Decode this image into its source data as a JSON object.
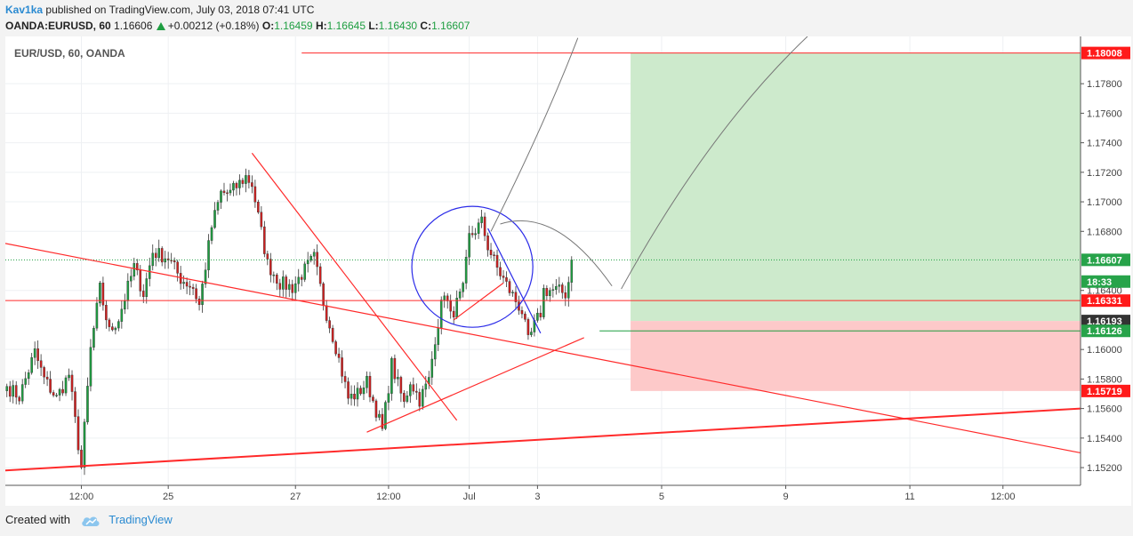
{
  "header": {
    "author": "Kav1ka",
    "published": "published on TradingView.com, July 03, 2018 07:41 UTC",
    "symbol": "OANDA:EURUSD, 60",
    "last": "1.16606",
    "change": "+0.00212 (+0.18%)",
    "o_label": "O:",
    "o_value": "1.16459",
    "h_label": "H:",
    "h_value": "1.16645",
    "l_label": "L:",
    "l_value": "1.16430",
    "c_label": "C:",
    "c_value": "1.16607"
  },
  "footer": {
    "created_with": "Created with",
    "brand": "TradingView"
  },
  "colors": {
    "bull": "#1e9e41",
    "bear": "#d02020",
    "trend": "#ff2a2a",
    "circle": "#2a2ae8",
    "target_zone": "#cdeacc",
    "stop_zone": "#fdc9c9",
    "projection": "#777777",
    "brand": "#2a8ad1"
  },
  "chart_data": {
    "type": "candlestick",
    "title": "EUR/USD, 60, OANDA",
    "ylim": [
      1.1508,
      1.1812
    ],
    "y_ticks": [
      "1.17800",
      "1.17600",
      "1.17400",
      "1.17200",
      "1.17000",
      "1.16800",
      "1.16400",
      "1.16000",
      "1.15800",
      "1.15600",
      "1.15400",
      "1.15200"
    ],
    "y_tick_values": [
      1.178,
      1.176,
      1.174,
      1.172,
      1.17,
      1.168,
      1.164,
      1.16,
      1.158,
      1.156,
      1.154,
      1.152
    ],
    "x_ticks": [
      {
        "label": "12:00",
        "bar": 24
      },
      {
        "label": "25",
        "bar": 52
      },
      {
        "label": "27",
        "bar": 93
      },
      {
        "label": "12:00",
        "bar": 123
      },
      {
        "label": "Jul",
        "bar": 149
      },
      {
        "label": "3",
        "bar": 171
      },
      {
        "label": "5",
        "bar": 211
      },
      {
        "label": "9",
        "bar": 251
      },
      {
        "label": "11",
        "bar": 291
      },
      {
        "label": "12:00",
        "bar": 321
      }
    ],
    "x_bar_range": [
      -0.5,
      346
    ],
    "price_labels": [
      {
        "text": "1.18008",
        "value": 1.18008,
        "kind": "red"
      },
      {
        "text": "1.16607",
        "value": 1.16607,
        "kind": "green"
      },
      {
        "text": "18:33",
        "value": 1.1646,
        "kind": "green"
      },
      {
        "text": "1.16331",
        "value": 1.16331,
        "kind": "red"
      },
      {
        "text": "1.16193",
        "value": 1.16193,
        "kind": "dark"
      },
      {
        "text": "1.16126",
        "value": 1.16126,
        "kind": "green"
      },
      {
        "text": "1.15719",
        "value": 1.15719,
        "kind": "red"
      }
    ],
    "waypoints": [
      [
        0,
        1.1575
      ],
      [
        4,
        1.1568
      ],
      [
        9,
        1.1598
      ],
      [
        12,
        1.158
      ],
      [
        16,
        1.1567
      ],
      [
        20,
        1.1583
      ],
      [
        24,
        1.152
      ],
      [
        27,
        1.16
      ],
      [
        30,
        1.1641
      ],
      [
        33,
        1.1612
      ],
      [
        36,
        1.1621
      ],
      [
        41,
        1.1656
      ],
      [
        44,
        1.1638
      ],
      [
        47,
        1.1666
      ],
      [
        52,
        1.1662
      ],
      [
        56,
        1.1648
      ],
      [
        60,
        1.1642
      ],
      [
        62,
        1.163
      ],
      [
        66,
        1.1683
      ],
      [
        69,
        1.1706
      ],
      [
        72,
        1.1706
      ],
      [
        77,
        1.1717
      ],
      [
        79,
        1.1712
      ],
      [
        81,
        1.169
      ],
      [
        84,
        1.1658
      ],
      [
        88,
        1.1645
      ],
      [
        92,
        1.1642
      ],
      [
        95,
        1.1651
      ],
      [
        99,
        1.1662
      ],
      [
        102,
        1.1632
      ],
      [
        106,
        1.1602
      ],
      [
        110,
        1.1567
      ],
      [
        113,
        1.157
      ],
      [
        116,
        1.1578
      ],
      [
        119,
        1.1559
      ],
      [
        121,
        1.1545
      ],
      [
        124,
        1.159
      ],
      [
        128,
        1.1563
      ],
      [
        130,
        1.1579
      ],
      [
        133,
        1.1566
      ],
      [
        136,
        1.1579
      ],
      [
        138,
        1.1608
      ],
      [
        141,
        1.164
      ],
      [
        143,
        1.1622
      ],
      [
        147,
        1.164
      ],
      [
        149,
        1.1676
      ],
      [
        153,
        1.1686
      ],
      [
        155,
        1.167
      ],
      [
        158,
        1.1655
      ],
      [
        162,
        1.164
      ],
      [
        166,
        1.1626
      ],
      [
        168,
        1.1605
      ],
      [
        170,
        1.1616
      ],
      [
        172,
        1.1625
      ],
      [
        173,
        1.164
      ],
      [
        177,
        1.164
      ],
      [
        180,
        1.1638
      ],
      [
        181,
        1.1646
      ],
      [
        182,
        1.1661
      ]
    ],
    "drawings": [
      {
        "kind": "trendline",
        "from": [
          -1,
          1.1672
        ],
        "to": [
          346,
          1.153
        ],
        "color": "trend",
        "width": 1.2
      },
      {
        "kind": "trendline",
        "from": [
          -1,
          1.1518
        ],
        "to": [
          346,
          1.156
        ],
        "color": "trend",
        "width": 2
      },
      {
        "kind": "trendline",
        "from": [
          79,
          1.1733
        ],
        "to": [
          145,
          1.1552
        ],
        "color": "trend",
        "width": 1.2
      },
      {
        "kind": "trendline",
        "from": [
          116,
          1.1544
        ],
        "to": [
          186,
          1.1608
        ],
        "color": "trend",
        "width": 1.2
      },
      {
        "kind": "trendline",
        "from": [
          144,
          1.162
        ],
        "to": [
          160,
          1.1645
        ],
        "color": "trend",
        "width": 1.2
      },
      {
        "kind": "trendline",
        "from": [
          155,
          1.1682
        ],
        "to": [
          172,
          1.1611
        ],
        "color": "circle",
        "width": 1.2
      },
      {
        "kind": "hline",
        "from": -1,
        "to": 346,
        "value": 1.16331,
        "color": "trend",
        "width": 1
      },
      {
        "kind": "hline",
        "from": 95,
        "to": 346,
        "value": 1.18008,
        "color": "trend",
        "width": 1
      },
      {
        "kind": "hline",
        "from": 191,
        "to": 346,
        "value": 1.16126,
        "color": "bull",
        "width": 1
      }
    ],
    "zones": [
      {
        "from_bar": 201,
        "to_bar": 346,
        "from": 1.16193,
        "to": 1.18008,
        "color": "target_zone"
      },
      {
        "from_bar": 201,
        "to_bar": 346,
        "from": 1.15719,
        "to": 1.16193,
        "color": "stop_zone"
      }
    ],
    "circle": {
      "bar": 150,
      "value": 1.1656,
      "radius_bars": 19.5
    },
    "projection_curves": [
      "156,1.1680 173,1.1751 184,1.1811",
      "159,1.1685 177,1.1697 195,1.1643",
      "198,1.1641 226,1.1748 258,1.1812"
    ]
  }
}
